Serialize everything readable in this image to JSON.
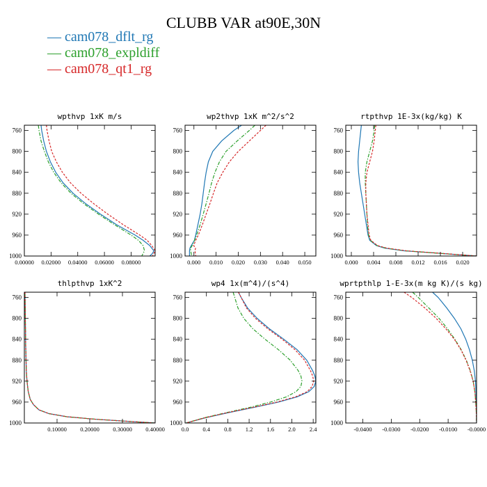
{
  "page": {
    "title": "CLUBB VAR at90E,30N",
    "series": [
      {
        "name": "cam078_dflt_rg",
        "color": "#1f77b4",
        "dash": ""
      },
      {
        "name": "cam078_expldiff",
        "color": "#2ca02c",
        "dash": "5,2,1.5,2"
      },
      {
        "name": "cam078_qt1_rg",
        "color": "#d62728",
        "dash": "3,2"
      }
    ]
  },
  "chart_data": [
    {
      "type": "line",
      "title": "wpthvp  1xK m/s",
      "xlim": [
        0,
        0.098
      ],
      "ylim": [
        1000,
        750
      ],
      "grid": false,
      "xticks": [
        0,
        0.02,
        0.04,
        0.06,
        0.08
      ],
      "xtick_labels": [
        "0.00000",
        "0.02000",
        "0.04000",
        "0.06000",
        "0.08000"
      ],
      "yticks": [
        760,
        800,
        840,
        880,
        920,
        960,
        1000
      ],
      "y": [
        750,
        760,
        780,
        800,
        820,
        840,
        860,
        880,
        900,
        920,
        940,
        960,
        970,
        980,
        990,
        995,
        1000
      ],
      "series": [
        {
          "name": "cam078_dflt_rg",
          "values": [
            0.0125,
            0.013,
            0.0145,
            0.0165,
            0.0195,
            0.0235,
            0.029,
            0.0365,
            0.046,
            0.057,
            0.069,
            0.083,
            0.089,
            0.094,
            0.097,
            0.096,
            0.094
          ]
        },
        {
          "name": "cam078_expldiff",
          "values": [
            0.0105,
            0.011,
            0.0125,
            0.015,
            0.018,
            0.022,
            0.0275,
            0.035,
            0.0445,
            0.0555,
            0.0675,
            0.08,
            0.0855,
            0.089,
            0.09,
            0.089,
            0.088
          ]
        },
        {
          "name": "cam078_qt1_rg",
          "values": [
            0.0165,
            0.017,
            0.0185,
            0.0205,
            0.024,
            0.0285,
            0.0345,
            0.0425,
            0.052,
            0.0625,
            0.074,
            0.0865,
            0.092,
            0.0955,
            0.098,
            0.097,
            0.096
          ]
        }
      ]
    },
    {
      "type": "line",
      "title": "wp2thvp  1xK m^2/s^2",
      "xlim": [
        -0.004,
        0.055
      ],
      "ylim": [
        1000,
        750
      ],
      "grid": false,
      "xticks": [
        0,
        0.01,
        0.02,
        0.03,
        0.04,
        0.05
      ],
      "xtick_labels": [
        "0.000",
        "0.010",
        "0.020",
        "0.030",
        "0.040",
        "0.050"
      ],
      "yticks": [
        760,
        800,
        840,
        880,
        920,
        960,
        1000
      ],
      "y": [
        750,
        760,
        780,
        800,
        820,
        840,
        860,
        880,
        900,
        920,
        940,
        960,
        970,
        980,
        985,
        990,
        1000
      ],
      "series": [
        {
          "name": "cam078_dflt_rg",
          "values": [
            0.0215,
            0.018,
            0.0125,
            0.0085,
            0.0065,
            0.0055,
            0.0048,
            0.0042,
            0.0036,
            0.0028,
            0.0018,
            0.0008,
            0.0002,
            -0.0012,
            -0.0018,
            -0.002,
            -0.002
          ]
        },
        {
          "name": "cam078_expldiff",
          "values": [
            0.0275,
            0.025,
            0.0195,
            0.0145,
            0.0115,
            0.0095,
            0.008,
            0.0068,
            0.0055,
            0.0042,
            0.0028,
            0.0012,
            0.0003,
            -0.0008,
            -0.0015,
            -0.0015,
            -0.001
          ]
        },
        {
          "name": "cam078_qt1_rg",
          "values": [
            0.0325,
            0.03,
            0.025,
            0.02,
            0.016,
            0.013,
            0.0105,
            0.0088,
            0.0072,
            0.0055,
            0.0038,
            0.002,
            0.0008,
            -0.0001,
            0.0007,
            0.0005,
            0.0008
          ]
        }
      ]
    },
    {
      "type": "line",
      "title": "rtpthvp  1E-3x(kg/kg) K",
      "xlim": [
        -0.001,
        0.0225
      ],
      "ylim": [
        1000,
        750
      ],
      "grid": false,
      "xticks": [
        0,
        0.004,
        0.008,
        0.012,
        0.016,
        0.02
      ],
      "xtick_labels": [
        "0.000",
        "0.004",
        "0.008",
        "0.012",
        "0.016",
        "0.020"
      ],
      "yticks": [
        760,
        800,
        840,
        880,
        920,
        960,
        1000
      ],
      "y": [
        750,
        760,
        780,
        800,
        820,
        840,
        860,
        880,
        900,
        920,
        940,
        960,
        970,
        980,
        985,
        990,
        995,
        1000
      ],
      "series": [
        {
          "name": "cam078_dflt_rg",
          "values": [
            0.0018,
            0.0017,
            0.0015,
            0.0013,
            0.0012,
            0.0013,
            0.0015,
            0.0018,
            0.0021,
            0.0024,
            0.0027,
            0.003,
            0.0033,
            0.0045,
            0.006,
            0.0095,
            0.016,
            0.0225
          ]
        },
        {
          "name": "cam078_expldiff",
          "values": [
            0.0042,
            0.0041,
            0.0038,
            0.0033,
            0.0028,
            0.0025,
            0.0025,
            0.0026,
            0.0027,
            0.0028,
            0.0029,
            0.0031,
            0.0034,
            0.0046,
            0.0062,
            0.0097,
            0.016,
            0.0225
          ]
        },
        {
          "name": "cam078_qt1_rg",
          "values": [
            0.0044,
            0.0043,
            0.0041,
            0.0038,
            0.0033,
            0.0028,
            0.0026,
            0.0026,
            0.0027,
            0.0028,
            0.003,
            0.0032,
            0.0035,
            0.0047,
            0.0064,
            0.0099,
            0.0162,
            0.0225
          ]
        }
      ]
    },
    {
      "type": "line",
      "title": "thlpthvp  1xK^2",
      "xlim": [
        0,
        0.4
      ],
      "ylim": [
        1000,
        750
      ],
      "grid": false,
      "xticks": [
        0.1,
        0.2,
        0.3,
        0.4
      ],
      "xtick_labels": [
        "0.10000",
        "0.20000",
        "0.30000",
        "0.40000"
      ],
      "yticks": [
        760,
        800,
        840,
        880,
        920,
        960,
        1000
      ],
      "y": [
        750,
        800,
        850,
        900,
        920,
        940,
        955,
        965,
        975,
        982,
        988,
        993,
        997,
        1000
      ],
      "series": [
        {
          "name": "cam078_dflt_rg",
          "values": [
            0.002,
            0.003,
            0.004,
            0.006,
            0.008,
            0.012,
            0.018,
            0.028,
            0.045,
            0.075,
            0.13,
            0.22,
            0.32,
            0.4
          ]
        },
        {
          "name": "cam078_expldiff",
          "values": [
            0.002,
            0.003,
            0.004,
            0.006,
            0.008,
            0.012,
            0.018,
            0.028,
            0.045,
            0.075,
            0.13,
            0.22,
            0.32,
            0.4
          ]
        },
        {
          "name": "cam078_qt1_rg",
          "values": [
            0.002,
            0.003,
            0.004,
            0.006,
            0.008,
            0.012,
            0.018,
            0.028,
            0.045,
            0.075,
            0.13,
            0.22,
            0.32,
            0.4
          ]
        }
      ]
    },
    {
      "type": "line",
      "title": "wp4  1x(m^4)/(s^4)",
      "xlim": [
        0,
        2.45
      ],
      "ylim": [
        1000,
        750
      ],
      "grid": false,
      "xticks": [
        0,
        0.4,
        0.8,
        1.2,
        1.6,
        2.0,
        2.4
      ],
      "xtick_labels": [
        "0.0",
        "0.4",
        "0.8",
        "1.2",
        "1.6",
        "2.0",
        "2.4"
      ],
      "yticks": [
        760,
        800,
        840,
        880,
        920,
        960,
        1000
      ],
      "y": [
        750,
        760,
        780,
        800,
        820,
        840,
        860,
        880,
        900,
        910,
        920,
        930,
        940,
        950,
        960,
        970,
        980,
        990,
        1000
      ],
      "series": [
        {
          "name": "cam078_dflt_rg",
          "values": [
            1.0,
            1.05,
            1.17,
            1.35,
            1.58,
            1.85,
            2.1,
            2.28,
            2.39,
            2.43,
            2.45,
            2.42,
            2.32,
            2.1,
            1.75,
            1.3,
            0.82,
            0.38,
            0.02
          ]
        },
        {
          "name": "cam078_expldiff",
          "values": [
            0.9,
            0.93,
            0.99,
            1.1,
            1.27,
            1.5,
            1.75,
            1.97,
            2.12,
            2.17,
            2.19,
            2.17,
            2.08,
            1.9,
            1.6,
            1.22,
            0.78,
            0.36,
            0.02
          ]
        },
        {
          "name": "cam078_qt1_rg",
          "values": [
            1.0,
            1.05,
            1.15,
            1.32,
            1.55,
            1.82,
            2.06,
            2.24,
            2.35,
            2.39,
            2.41,
            2.38,
            2.29,
            2.07,
            1.72,
            1.28,
            0.8,
            0.37,
            0.02
          ]
        }
      ]
    },
    {
      "type": "line",
      "title": "wprtpthlp  1-E-3x(m kg K)/(s kg)",
      "xlim": [
        -0.046,
        0
      ],
      "ylim": [
        1000,
        750
      ],
      "grid": false,
      "xticks": [
        -0.04,
        -0.03,
        -0.02,
        -0.01,
        0
      ],
      "xtick_labels": [
        "-0.0400",
        "-0.0300",
        "-0.0200",
        "-0.0100",
        "-0.0000"
      ],
      "yticks": [
        760,
        800,
        840,
        880,
        920,
        960,
        1000
      ],
      "y": [
        750,
        760,
        780,
        800,
        820,
        840,
        860,
        880,
        900,
        920,
        940,
        960,
        980,
        1000
      ],
      "series": [
        {
          "name": "cam078_dflt_rg",
          "values": [
            -0.0155,
            -0.0135,
            -0.0105,
            -0.0078,
            -0.0055,
            -0.0038,
            -0.0025,
            -0.0015,
            -0.0008,
            -0.0004,
            -0.0002,
            -0.0001,
            0,
            0
          ]
        },
        {
          "name": "cam078_expldiff",
          "values": [
            -0.0225,
            -0.0205,
            -0.0168,
            -0.0132,
            -0.0102,
            -0.0076,
            -0.0054,
            -0.0036,
            -0.0022,
            -0.0012,
            -0.0006,
            -0.0003,
            -0.0001,
            0
          ]
        },
        {
          "name": "cam078_qt1_rg",
          "values": [
            -0.0255,
            -0.0228,
            -0.0182,
            -0.0142,
            -0.0108,
            -0.0078,
            -0.0055,
            -0.0037,
            -0.0023,
            -0.0012,
            -0.0006,
            -0.0003,
            -0.0001,
            0
          ]
        }
      ]
    }
  ]
}
